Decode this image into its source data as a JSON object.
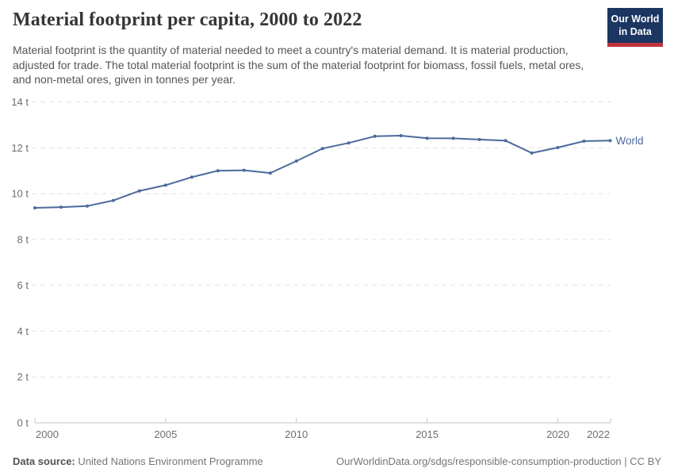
{
  "header": {
    "title": "Material footprint per capita, 2000 to 2022",
    "logo": {
      "line1": "Our World",
      "line2": "in Data"
    }
  },
  "subtitle": "Material footprint is the quantity of material needed to meet a country's material demand. It is material production, adjusted for trade. The total material footprint is the sum of the material footprint for biomass, fossil fuels, metal ores, and non-metal ores, given in tonnes per year.",
  "chart_data": {
    "type": "line",
    "title": "Material footprint per capita, 2000 to 2022",
    "x": [
      2000,
      2001,
      2002,
      2003,
      2004,
      2005,
      2006,
      2007,
      2008,
      2009,
      2010,
      2011,
      2012,
      2013,
      2014,
      2015,
      2016,
      2017,
      2018,
      2019,
      2020,
      2021,
      2022
    ],
    "series": [
      {
        "name": "World",
        "color": "#4c6a9c",
        "values": [
          9.38,
          9.41,
          9.46,
          9.7,
          10.12,
          10.37,
          10.72,
          11.0,
          11.02,
          10.9,
          11.42,
          11.97,
          12.21,
          12.5,
          12.53,
          12.42,
          12.41,
          12.36,
          12.31,
          11.77,
          12.01,
          12.29,
          12.31
        ]
      }
    ],
    "xlabel": "",
    "ylabel": "",
    "unit": "tonnes per year",
    "ylim": [
      0,
      14
    ],
    "yticks": [
      0,
      2,
      4,
      6,
      8,
      10,
      12,
      14
    ],
    "ytick_suffix": " t",
    "xticks": [
      2000,
      2005,
      2010,
      2015,
      2020,
      2022
    ],
    "grid": "horizontal-dashed",
    "legend_position": "end-of-line"
  },
  "footer": {
    "datasource_label": "Data source:",
    "datasource": "United Nations Environment Programme",
    "link": "OurWorldinData.org/sdgs/responsible-consumption-production | CC BY"
  },
  "colors": {
    "accent_line": "#4c6a9c",
    "logo_bg": "#1b3660",
    "logo_underline": "#c0333b",
    "grid": "#e2e2e2",
    "axis": "#c3c3c3",
    "tick_text": "#6e6e6e"
  }
}
